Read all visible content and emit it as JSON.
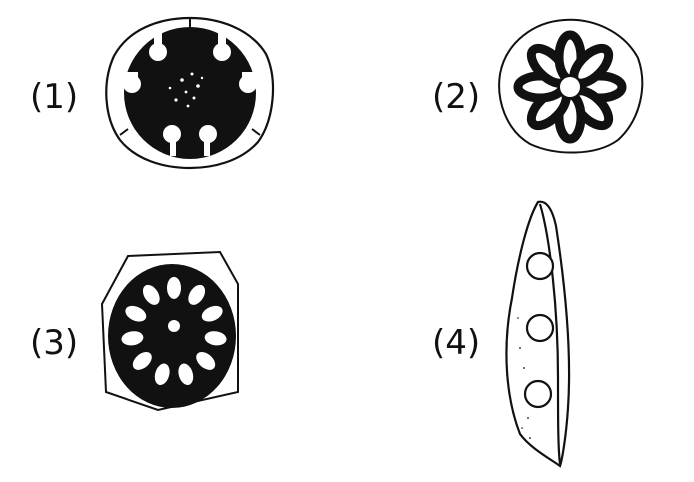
{
  "labels": {
    "one": "(1)",
    "two": "(2)",
    "three": "(3)",
    "four": "(4)"
  },
  "colors": {
    "ink": "#111111",
    "paper": "#ffffff"
  }
}
